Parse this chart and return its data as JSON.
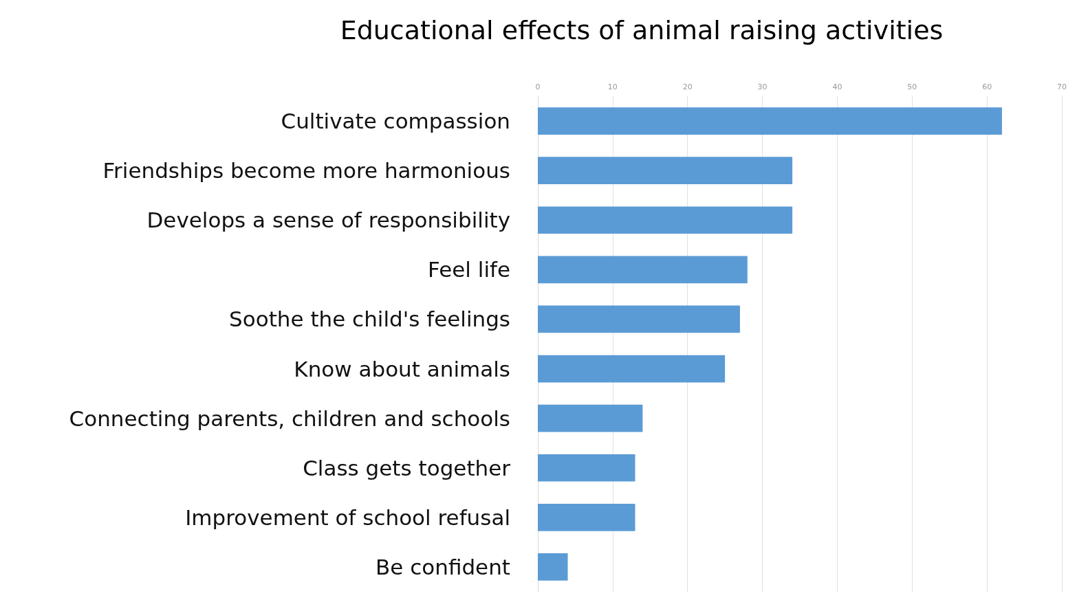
{
  "chart_data": {
    "type": "bar",
    "orientation": "horizontal",
    "title": "Educational effects of animal raising activities",
    "categories": [
      "Cultivate compassion",
      "Friendships become more harmonious",
      "Develops a sense of responsibility",
      "Feel life",
      "Soothe the child's feelings",
      "Know about animals",
      "Connecting parents, children and schools",
      "Class gets together",
      "Improvement of school refusal",
      "Be confident"
    ],
    "values": [
      62,
      34,
      34,
      28,
      27,
      25,
      14,
      13,
      13,
      4
    ],
    "color": "#5b9bd5",
    "xlim": [
      0,
      70
    ],
    "xticks": [
      0,
      10,
      20,
      30,
      40,
      50,
      60,
      70
    ],
    "grid": "x"
  }
}
